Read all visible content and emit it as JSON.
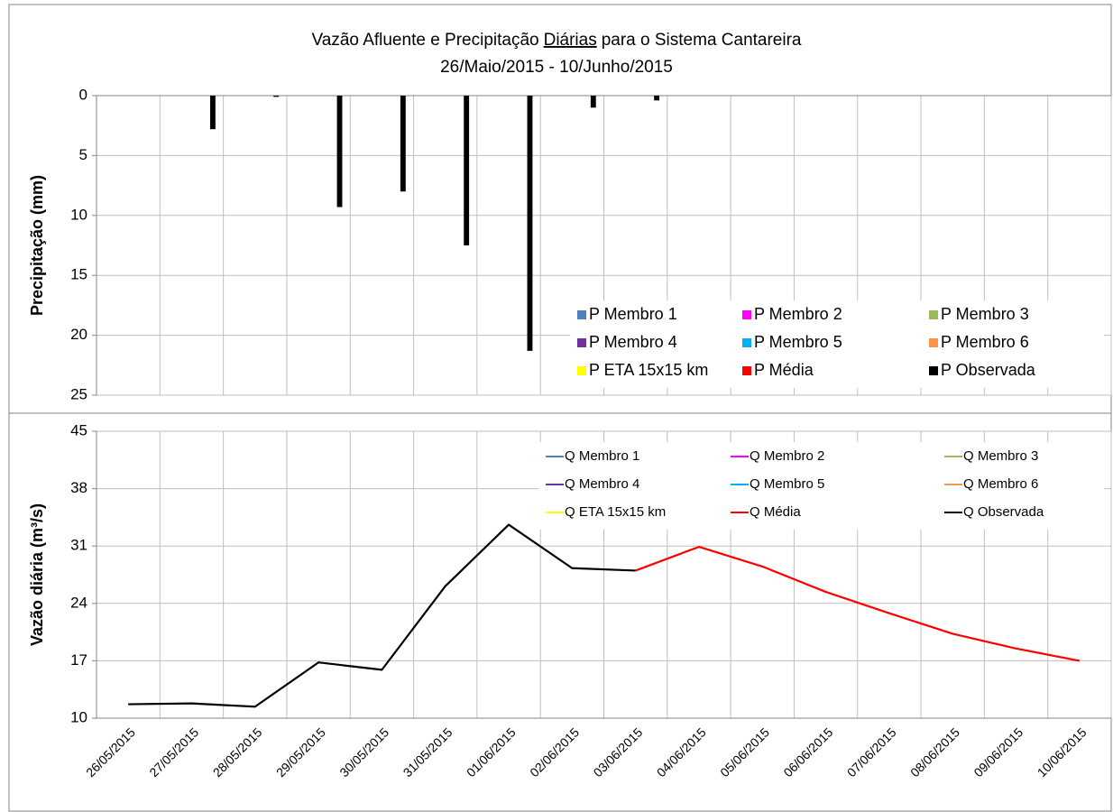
{
  "chart_data": [
    {
      "type": "bar",
      "title": [
        "Vazão Afluente e Precipitação",
        "Diárias",
        "para o Sistema Cantareira"
      ],
      "subtitle": "26/Maio/2015 - 10/Junho/2015",
      "y_label": "Precipitação (mm)",
      "categories": [
        null,
        null,
        null,
        null,
        null,
        null,
        null,
        null,
        null,
        null,
        null,
        null,
        null,
        null,
        null,
        null
      ],
      "ylim": [
        0,
        25
      ],
      "y_inverted": true,
      "yticks": [
        0,
        5,
        10,
        15,
        20,
        25
      ],
      "grid": true,
      "legend": "lower right",
      "series": [
        {
          "name": "P Membro 1",
          "color": "#4f81bd",
          "values": [
            null,
            null,
            null,
            null,
            null,
            null,
            null,
            null,
            null,
            null,
            null,
            null,
            null,
            null,
            null,
            null
          ]
        },
        {
          "name": "P Membro 2",
          "color": "#ff00ff",
          "values": [
            null,
            null,
            null,
            null,
            null,
            null,
            null,
            null,
            null,
            null,
            null,
            null,
            null,
            null,
            null,
            null
          ]
        },
        {
          "name": "P Membro 3",
          "color": "#9bbb59",
          "values": [
            null,
            null,
            null,
            null,
            null,
            null,
            null,
            null,
            null,
            null,
            null,
            null,
            null,
            null,
            null,
            null
          ]
        },
        {
          "name": "P Membro 4",
          "color": "#7030a0",
          "values": [
            null,
            null,
            null,
            null,
            null,
            null,
            null,
            null,
            null,
            null,
            null,
            null,
            null,
            null,
            null,
            null
          ]
        },
        {
          "name": "P Membro 5",
          "color": "#00b0f0",
          "values": [
            null,
            null,
            null,
            null,
            null,
            null,
            null,
            null,
            null,
            null,
            null,
            null,
            null,
            null,
            null,
            null
          ]
        },
        {
          "name": "P Membro 6",
          "color": "#f79646",
          "values": [
            null,
            null,
            null,
            null,
            null,
            null,
            null,
            null,
            null,
            null,
            null,
            null,
            null,
            null,
            null,
            null
          ]
        },
        {
          "name": "P ETA 15x15 km",
          "color": "#ffff00",
          "values": [
            null,
            null,
            null,
            null,
            null,
            null,
            null,
            null,
            null,
            null,
            null,
            null,
            null,
            null,
            null,
            null
          ]
        },
        {
          "name": "P Média",
          "color": "#ff0000",
          "values": [
            null,
            null,
            null,
            null,
            null,
            null,
            null,
            null,
            null,
            null,
            null,
            null,
            null,
            null,
            null,
            null
          ]
        },
        {
          "name": "P Observada",
          "color": "#000000",
          "values": [
            0,
            2.8,
            0.1,
            9.3,
            8.0,
            12.5,
            21.3,
            1.0,
            0.4,
            null,
            null,
            null,
            null,
            null,
            null,
            null
          ]
        }
      ]
    },
    {
      "type": "line",
      "y_label": "Vazão diária (m³/s)",
      "categories": [
        "26/05/2015",
        "27/05/2015",
        "28/05/2015",
        "29/05/2015",
        "30/05/2015",
        "31/05/2015",
        "01/06/2015",
        "02/06/2015",
        "03/06/2015",
        "04/06/2015",
        "05/06/2015",
        "06/06/2015",
        "07/06/2015",
        "08/06/2015",
        "09/06/2015",
        "10/06/2015"
      ],
      "ylim": [
        10,
        45
      ],
      "yticks": [
        10,
        17,
        24,
        31,
        38,
        45
      ],
      "grid": true,
      "legend": "upper right",
      "series": [
        {
          "name": "Q Membro 1",
          "color": "#4f81bd",
          "values": [
            null,
            null,
            null,
            null,
            null,
            null,
            null,
            null,
            null,
            null,
            null,
            null,
            null,
            null,
            null,
            null
          ]
        },
        {
          "name": "Q Membro 2",
          "color": "#ff00ff",
          "values": [
            null,
            null,
            null,
            null,
            null,
            null,
            null,
            null,
            null,
            null,
            null,
            null,
            null,
            null,
            null,
            null
          ]
        },
        {
          "name": "Q Membro 3",
          "color": "#9bbb59",
          "values": [
            null,
            null,
            null,
            null,
            null,
            null,
            null,
            null,
            null,
            null,
            null,
            null,
            null,
            null,
            null,
            null
          ]
        },
        {
          "name": "Q Membro 4",
          "color": "#7030a0",
          "values": [
            null,
            null,
            null,
            null,
            null,
            null,
            null,
            null,
            null,
            null,
            null,
            null,
            null,
            null,
            null,
            null
          ]
        },
        {
          "name": "Q Membro 5",
          "color": "#00b0f0",
          "values": [
            null,
            null,
            null,
            null,
            null,
            null,
            null,
            null,
            null,
            null,
            null,
            null,
            null,
            null,
            null,
            null
          ]
        },
        {
          "name": "Q Membro 6",
          "color": "#f79646",
          "values": [
            null,
            null,
            null,
            null,
            null,
            null,
            null,
            null,
            null,
            null,
            null,
            null,
            null,
            null,
            null,
            null
          ]
        },
        {
          "name": "Q ETA 15x15 km",
          "color": "#ffff00",
          "values": [
            null,
            null,
            null,
            null,
            null,
            null,
            null,
            null,
            null,
            null,
            null,
            null,
            null,
            null,
            null,
            null
          ]
        },
        {
          "name": "Q Média",
          "color": "#ff0000",
          "values": [
            null,
            null,
            null,
            null,
            null,
            null,
            null,
            null,
            28.0,
            30.9,
            28.5,
            25.4,
            22.8,
            20.3,
            18.5,
            17.0
          ]
        },
        {
          "name": "Q Observada",
          "color": "#000000",
          "values": [
            11.7,
            11.8,
            11.4,
            16.8,
            15.9,
            26.1,
            33.6,
            28.3,
            28.0,
            null,
            null,
            null,
            null,
            null,
            null,
            null
          ]
        }
      ]
    }
  ]
}
